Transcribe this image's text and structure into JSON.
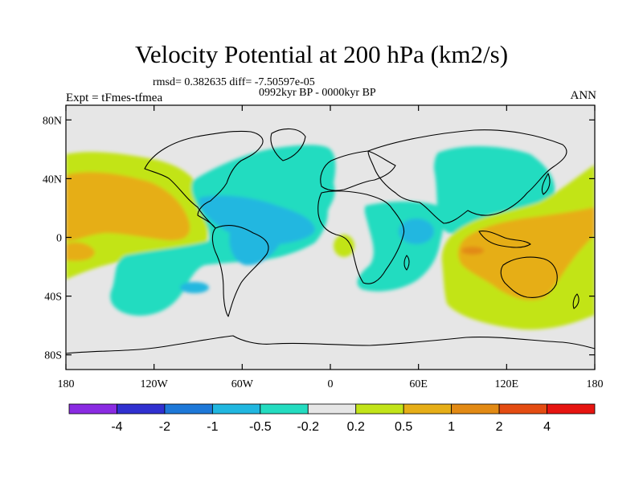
{
  "title": "Velocity Potential at 200 hPa (km2/s)",
  "stats_line": "rmsd= 0.382635 diff= -7.50597e-05",
  "period": "0992kyr BP - 0000kyr BP",
  "experiment": "Expt = tFmes-tfmea",
  "season": "ANN",
  "map": {
    "projection": "cylindrical-equidistant",
    "lon_range": [
      -180,
      180
    ],
    "lat_range": [
      -90,
      90
    ],
    "background_color": "#e6e6e6",
    "lat_ticks": [
      {
        "lat": 80,
        "label": "80N"
      },
      {
        "lat": 40,
        "label": "40N"
      },
      {
        "lat": 0,
        "label": "0"
      },
      {
        "lat": -40,
        "label": "40S"
      },
      {
        "lat": -80,
        "label": "80S"
      }
    ],
    "lon_ticks": [
      {
        "lon": -180,
        "label": "180"
      },
      {
        "lon": -120,
        "label": "120W"
      },
      {
        "lon": -60,
        "label": "60W"
      },
      {
        "lon": 0,
        "label": "0"
      },
      {
        "lon": 60,
        "label": "60E"
      },
      {
        "lon": 120,
        "label": "120E"
      },
      {
        "lon": 180,
        "label": "180"
      }
    ]
  },
  "colorbar": {
    "colors": [
      "#8a2be2",
      "#3030d0",
      "#1e78d8",
      "#21b7e0",
      "#24dcc0",
      "#e6e6e6",
      "#c2e419",
      "#e6ae17",
      "#e28a14",
      "#e44c12",
      "#e61410"
    ],
    "labels": [
      "-4",
      "-2",
      "-1",
      "-0.5",
      "-0.2",
      "0.2",
      "0.5",
      "1",
      "2",
      "4"
    ]
  },
  "chart_data": {
    "type": "heatmap",
    "title": "Velocity Potential at 200 hPa (km2/s)",
    "units": "km2/s",
    "color_levels": [
      -4,
      -2,
      -1,
      -0.5,
      -0.2,
      0.2,
      0.5,
      1,
      2,
      4
    ],
    "regions": [
      {
        "lon": [
          -180,
          -125
        ],
        "lat": [
          -10,
          55
        ],
        "value": 0.3
      },
      {
        "lon": [
          -178,
          -135
        ],
        "lat": [
          -5,
          40
        ],
        "value": 0.7
      },
      {
        "lon": [
          -140,
          -20
        ],
        "lat": [
          -50,
          20
        ],
        "value": -0.3
      },
      {
        "lon": [
          -110,
          -20
        ],
        "lat": [
          0,
          40
        ],
        "value": -0.6
      },
      {
        "lon": [
          -80,
          -50
        ],
        "lat": [
          -20,
          10
        ],
        "value": -0.6
      },
      {
        "lon": [
          -100,
          5
        ],
        "lat": [
          5,
          62
        ],
        "value": -0.3
      },
      {
        "lon": [
          5,
          60
        ],
        "lat": [
          -40,
          20
        ],
        "value": -0.3
      },
      {
        "lon": [
          35,
          55
        ],
        "lat": [
          -5,
          10
        ],
        "value": -0.6
      },
      {
        "lon": [
          45,
          155
        ],
        "lat": [
          20,
          60
        ],
        "value": -0.3
      },
      {
        "lon": [
          -5,
          10
        ],
        "lat": [
          -15,
          -5
        ],
        "value": 0.3
      },
      {
        "lon": [
          60,
          180
        ],
        "lat": [
          -60,
          20
        ],
        "value": 0.3
      },
      {
        "lon": [
          75,
          180
        ],
        "lat": [
          -40,
          10
        ],
        "value": 0.7
      },
      {
        "lon": [
          80,
          95
        ],
        "lat": [
          -15,
          -5
        ],
        "value": 1.5
      }
    ]
  }
}
